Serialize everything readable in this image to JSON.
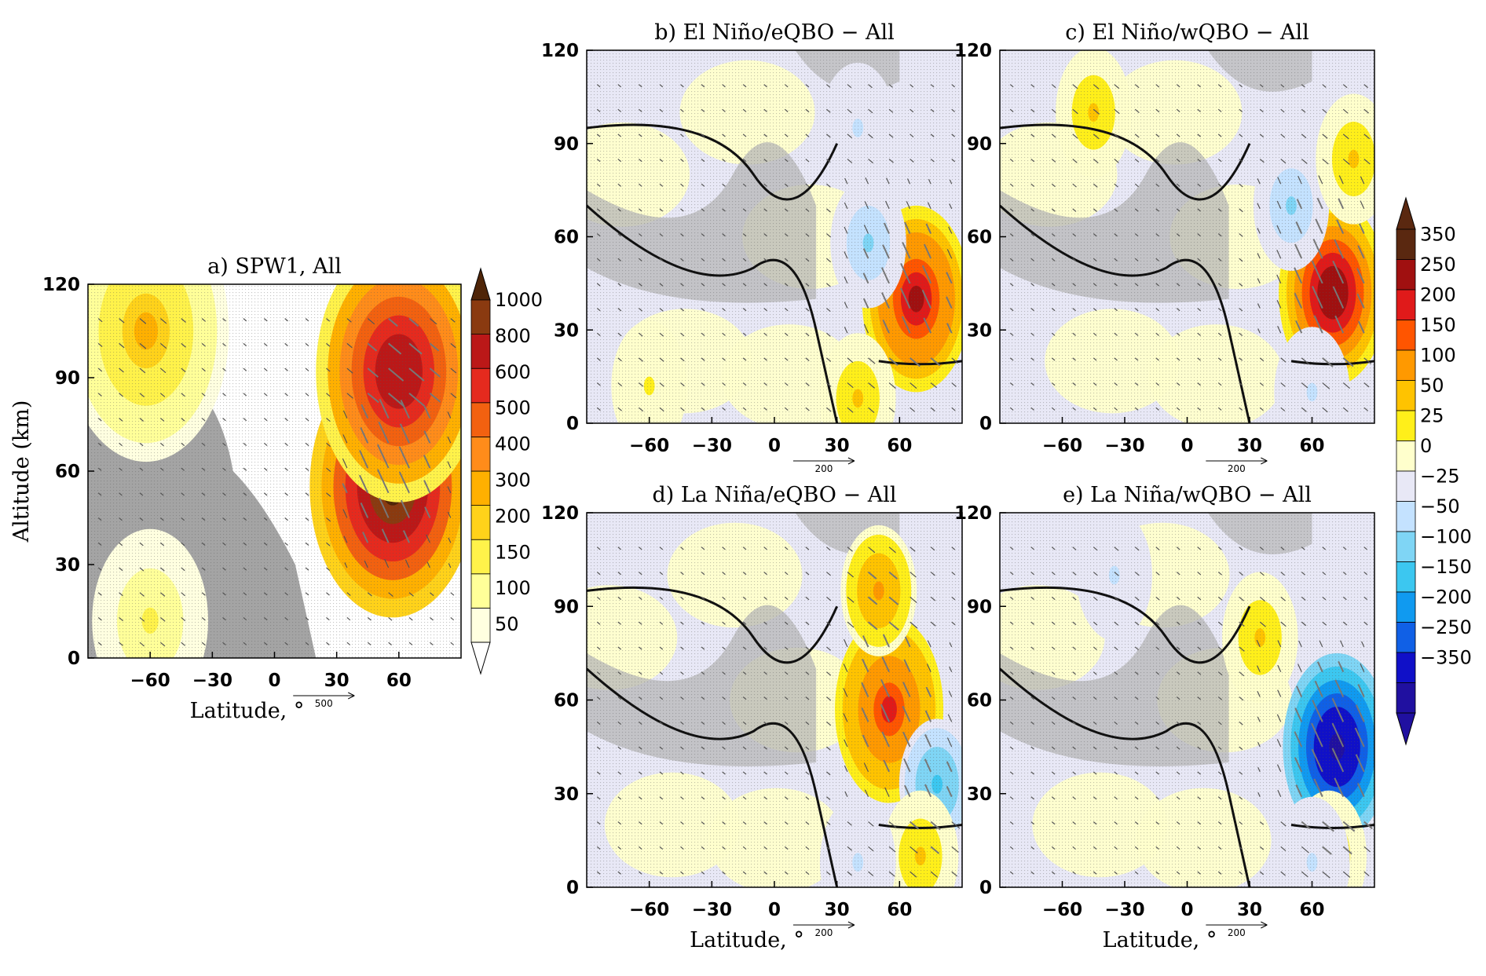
{
  "chart_data": [
    {
      "panel_id": "a",
      "type": "heatmap",
      "title": "a)  SPW1, All",
      "xlabel": "Latitude, °",
      "ylabel": "Altitude (km)",
      "xlim": [
        -90,
        90
      ],
      "ylim": [
        0,
        120
      ],
      "xticks": [
        -60,
        -30,
        0,
        30,
        60
      ],
      "yticks": [
        0,
        30,
        60,
        90,
        120
      ],
      "reference_vector": "500",
      "colorbar_levels": [
        "50",
        "100",
        "150",
        "200",
        "300",
        "400",
        "500",
        "600",
        "800",
        "1000"
      ],
      "features": [
        {
          "type": "max",
          "lat": 57,
          "alt": 55,
          "value": 1000
        },
        {
          "type": "max",
          "lat": 60,
          "alt": 92,
          "value": 700
        },
        {
          "type": "max",
          "lat": -62,
          "alt": 105,
          "value": 200
        },
        {
          "type": "max",
          "lat": -60,
          "alt": 12,
          "value": 100
        }
      ]
    },
    {
      "panel_id": "b",
      "type": "heatmap",
      "title": "b)  El Niño/eQBO − All",
      "xlabel": "",
      "ylabel": "",
      "xlim": [
        -90,
        90
      ],
      "ylim": [
        0,
        120
      ],
      "xticks": [
        -60,
        -30,
        0,
        30,
        60
      ],
      "yticks": [
        0,
        30,
        60,
        90,
        120
      ],
      "reference_vector": "200",
      "features": [
        {
          "type": "max",
          "lat": 68,
          "alt": 40,
          "value": 250
        },
        {
          "type": "min",
          "lat": 45,
          "alt": 58,
          "value": -50
        },
        {
          "type": "min",
          "lat": 40,
          "alt": 95,
          "value": -25
        },
        {
          "type": "max",
          "lat": 40,
          "alt": 8,
          "value": 50
        },
        {
          "type": "max",
          "lat": -60,
          "alt": 12,
          "value": 25
        }
      ]
    },
    {
      "panel_id": "c",
      "type": "heatmap",
      "title": "c)  El Niño/wQBO − All",
      "xlabel": "",
      "ylabel": "",
      "xlim": [
        -90,
        90
      ],
      "ylim": [
        0,
        120
      ],
      "xticks": [
        -60,
        -30,
        0,
        30,
        60
      ],
      "yticks": [
        0,
        30,
        60,
        90,
        120
      ],
      "reference_vector": "200",
      "features": [
        {
          "type": "max",
          "lat": 70,
          "alt": 42,
          "value": 300
        },
        {
          "type": "min",
          "lat": 50,
          "alt": 70,
          "value": -50
        },
        {
          "type": "max",
          "lat": -45,
          "alt": 100,
          "value": 50
        },
        {
          "type": "max",
          "lat": 80,
          "alt": 85,
          "value": 50
        },
        {
          "type": "min",
          "lat": 60,
          "alt": 10,
          "value": -25
        }
      ]
    },
    {
      "panel_id": "d",
      "type": "heatmap",
      "title": "d)  La Niña/eQBO − All",
      "xlabel": "Latitude, °",
      "ylabel": "",
      "xlim": [
        -90,
        90
      ],
      "ylim": [
        0,
        120
      ],
      "xticks": [
        -60,
        -30,
        0,
        30,
        60
      ],
      "yticks": [
        0,
        30,
        60,
        90,
        120
      ],
      "reference_vector": "200",
      "features": [
        {
          "type": "max",
          "lat": 55,
          "alt": 57,
          "value": 200
        },
        {
          "type": "max",
          "lat": 50,
          "alt": 95,
          "value": 100
        },
        {
          "type": "min",
          "lat": 78,
          "alt": 33,
          "value": -100
        },
        {
          "type": "max",
          "lat": 70,
          "alt": 10,
          "value": 50
        },
        {
          "type": "min",
          "lat": 40,
          "alt": 8,
          "value": -25
        }
      ]
    },
    {
      "panel_id": "e",
      "type": "heatmap",
      "title": "e)  La Niña/wQBO − All",
      "xlabel": "Latitude, °",
      "ylabel": "",
      "xlim": [
        -90,
        90
      ],
      "ylim": [
        0,
        120
      ],
      "xticks": [
        -60,
        -30,
        0,
        30,
        60
      ],
      "yticks": [
        0,
        30,
        60,
        90,
        120
      ],
      "reference_vector": "200",
      "colorbar_levels": [
        "350",
        "250",
        "200",
        "150",
        "100",
        "50",
        "25",
        "0",
        "−25",
        "−50",
        "−100",
        "−150",
        "−200",
        "−250",
        "−350"
      ],
      "features": [
        {
          "type": "min",
          "lat": 72,
          "alt": 45,
          "value": -350
        },
        {
          "type": "max",
          "lat": 35,
          "alt": 80,
          "value": 50
        },
        {
          "type": "max",
          "lat": 68,
          "alt": 10,
          "value": 50
        },
        {
          "type": "min",
          "lat": -35,
          "alt": 100,
          "value": -25
        },
        {
          "type": "min",
          "lat": 60,
          "alt": 8,
          "value": -25
        }
      ]
    }
  ],
  "colors": {
    "spw1_scale": [
      "#ffffe0",
      "#ffff99",
      "#fff24a",
      "#ffd21a",
      "#ffb000",
      "#ff8c1a",
      "#f26110",
      "#e52a1e",
      "#bb1818",
      "#8a3a10",
      "#4f2508"
    ],
    "diff_scale_pos": [
      "#ffffcc",
      "#ffef1a",
      "#ffc300",
      "#ff9900",
      "#ff5500",
      "#e01a1a",
      "#a01010",
      "#5a2810"
    ],
    "diff_scale_neg": [
      "#e8e8f6",
      "#c4e2ff",
      "#7fd5f5",
      "#3cc7f0",
      "#109af0",
      "#1060e6",
      "#1010c8",
      "#2010a0"
    ],
    "neutral_fill": "#ffffff",
    "shading_dark": "#888888",
    "shading_light": "#b7b7b7"
  }
}
